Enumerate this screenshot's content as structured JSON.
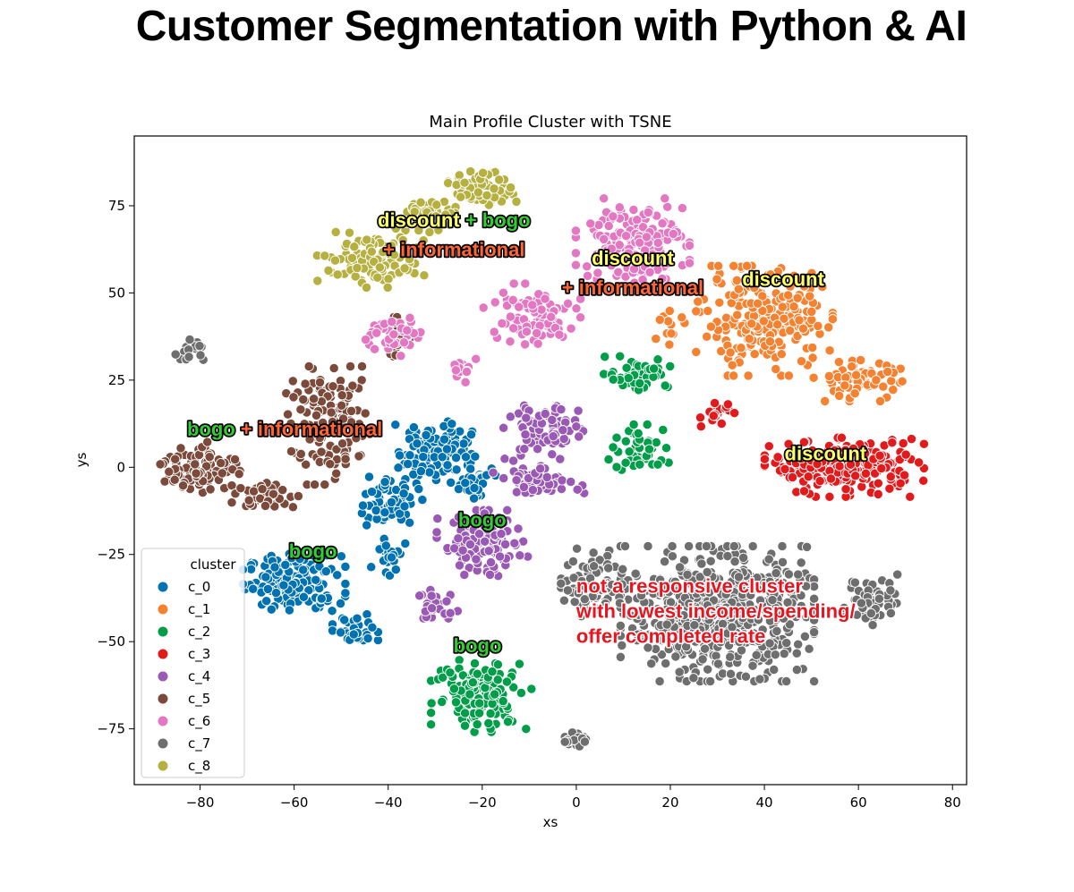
{
  "page": {
    "headline": "Customer Segmentation with Python & AI"
  },
  "chart_data": {
    "type": "scatter",
    "title": "Main Profile Cluster with TSNE",
    "xlabel": "xs",
    "ylabel": "ys",
    "xlim": [
      -94,
      83
    ],
    "ylim": [
      -91,
      95
    ],
    "xticks": [
      -80,
      -60,
      -40,
      -20,
      0,
      20,
      40,
      60,
      80
    ],
    "yticks": [
      -75,
      -50,
      -25,
      0,
      25,
      50,
      75
    ],
    "grid": false,
    "legend": {
      "title": "cluster",
      "placement": "lower-left"
    },
    "series": [
      {
        "name": "c_0",
        "color": "#0072b2",
        "regions": [
          {
            "center": [
              -60,
              -33
            ],
            "spread": [
              9,
              7
            ],
            "n": 170
          },
          {
            "center": [
              -30,
              5
            ],
            "spread": [
              7,
              8
            ],
            "n": 110
          },
          {
            "center": [
              -40,
              -10
            ],
            "spread": [
              6,
              6
            ],
            "n": 60
          },
          {
            "center": [
              -47,
              -47
            ],
            "spread": [
              4,
              4
            ],
            "n": 45
          },
          {
            "center": [
              -40,
              -25
            ],
            "spread": [
              3,
              5
            ],
            "n": 25
          },
          {
            "center": [
              -22,
              -5
            ],
            "spread": [
              4,
              5
            ],
            "n": 30
          }
        ]
      },
      {
        "name": "c_1",
        "color": "#f58231",
        "regions": [
          {
            "center": [
              40,
              42
            ],
            "spread": [
              12,
              13
            ],
            "n": 230
          },
          {
            "center": [
              60,
              25
            ],
            "spread": [
              8,
              5
            ],
            "n": 70
          },
          {
            "center": [
              20,
              40
            ],
            "spread": [
              3,
              4
            ],
            "n": 12
          }
        ]
      },
      {
        "name": "c_2",
        "color": "#009e49",
        "regions": [
          {
            "center": [
              -20,
              -65
            ],
            "spread": [
              9,
              9
            ],
            "n": 130
          },
          {
            "center": [
              13,
              27
            ],
            "spread": [
              6,
              4
            ],
            "n": 50
          },
          {
            "center": [
              14,
              5
            ],
            "spread": [
              6,
              6
            ],
            "n": 55
          }
        ]
      },
      {
        "name": "c_3",
        "color": "#e31a1c",
        "regions": [
          {
            "center": [
              57,
              0
            ],
            "spread": [
              14,
              7
            ],
            "n": 230
          },
          {
            "center": [
              30,
              15
            ],
            "spread": [
              3,
              3
            ],
            "n": 20
          }
        ]
      },
      {
        "name": "c_4",
        "color": "#9b59b6",
        "regions": [
          {
            "center": [
              -20,
              -22
            ],
            "spread": [
              8,
              8
            ],
            "n": 120
          },
          {
            "center": [
              -7,
              10
            ],
            "spread": [
              7,
              8
            ],
            "n": 80
          },
          {
            "center": [
              -8,
              -4
            ],
            "spread": [
              8,
              3
            ],
            "n": 50
          },
          {
            "center": [
              -30,
              -40
            ],
            "spread": [
              4,
              4
            ],
            "n": 35
          }
        ]
      },
      {
        "name": "c_5",
        "color": "#7b4a3a",
        "regions": [
          {
            "center": [
              -80,
              0
            ],
            "spread": [
              7,
              6
            ],
            "n": 90
          },
          {
            "center": [
              -52,
              12
            ],
            "spread": [
              8,
              14
            ],
            "n": 140
          },
          {
            "center": [
              -38,
              37
            ],
            "spread": [
              3,
              5
            ],
            "n": 20
          },
          {
            "center": [
              -66,
              -8
            ],
            "spread": [
              6,
              4
            ],
            "n": 40
          }
        ]
      },
      {
        "name": "c_6",
        "color": "#e377c2",
        "regions": [
          {
            "center": [
              12,
              65
            ],
            "spread": [
              10,
              10
            ],
            "n": 160
          },
          {
            "center": [
              -10,
              43
            ],
            "spread": [
              9,
              8
            ],
            "n": 90
          },
          {
            "center": [
              -39,
              38
            ],
            "spread": [
              5,
              5
            ],
            "n": 40
          },
          {
            "center": [
              -23,
              28
            ],
            "spread": [
              3,
              3
            ],
            "n": 15
          }
        ]
      },
      {
        "name": "c_7",
        "color": "#6e6e6e",
        "regions": [
          {
            "center": [
              30,
              -42
            ],
            "spread": [
              17,
              16
            ],
            "n": 600
          },
          {
            "center": [
              4,
              -33
            ],
            "spread": [
              6,
              8
            ],
            "n": 80
          },
          {
            "center": [
              63,
              -38
            ],
            "spread": [
              5,
              6
            ],
            "n": 60
          },
          {
            "center": [
              0,
              -78
            ],
            "spread": [
              2,
              2
            ],
            "n": 25
          },
          {
            "center": [
              -82,
              33
            ],
            "spread": [
              3,
              3
            ],
            "n": 15
          }
        ]
      },
      {
        "name": "c_8",
        "color": "#b5b040",
        "regions": [
          {
            "center": [
              -20,
              80
            ],
            "spread": [
              6,
              4
            ],
            "n": 80
          },
          {
            "center": [
              -43,
              60
            ],
            "spread": [
              10,
              7
            ],
            "n": 110
          },
          {
            "center": [
              -30,
              72
            ],
            "spread": [
              5,
              4
            ],
            "n": 40
          }
        ]
      }
    ],
    "annotations": [
      {
        "lines": [
          [
            {
              "text": "discount",
              "color": "#ffff66"
            },
            {
              "text": " + bogo",
              "color": "#33cc33"
            }
          ],
          [
            {
              "text": "+ informational",
              "color": "#ff6633"
            }
          ]
        ],
        "anchor": [
          -26,
          69
        ]
      },
      {
        "lines": [
          [
            {
              "text": "discount",
              "color": "#ffff66"
            }
          ],
          [
            {
              "text": "+ informational",
              "color": "#ff6633"
            }
          ]
        ],
        "anchor": [
          12,
          58
        ]
      },
      {
        "lines": [
          [
            {
              "text": "discount",
              "color": "#ffff66"
            }
          ]
        ],
        "anchor": [
          44,
          52
        ]
      },
      {
        "lines": [
          [
            {
              "text": "bogo",
              "color": "#33cc33"
            },
            {
              "text": " + informational",
              "color": "#ff6633"
            }
          ]
        ],
        "anchor": [
          -62,
          9
        ]
      },
      {
        "lines": [
          [
            {
              "text": "discount",
              "color": "#ffff66"
            }
          ]
        ],
        "anchor": [
          53,
          2
        ]
      },
      {
        "lines": [
          [
            {
              "text": "bogo",
              "color": "#33cc33"
            }
          ]
        ],
        "anchor": [
          -20,
          -17
        ]
      },
      {
        "lines": [
          [
            {
              "text": "bogo",
              "color": "#33cc33"
            }
          ]
        ],
        "anchor": [
          -56,
          -26
        ]
      },
      {
        "lines": [
          [
            {
              "text": "bogo",
              "color": "#33cc33"
            }
          ]
        ],
        "anchor": [
          -21,
          -53
        ]
      }
    ],
    "red_note": {
      "lines": [
        "not a responsive cluster",
        "with lowest income/spending/",
        "offer completed rate"
      ],
      "color": "#e8141e",
      "anchor": [
        0,
        -36
      ]
    }
  }
}
